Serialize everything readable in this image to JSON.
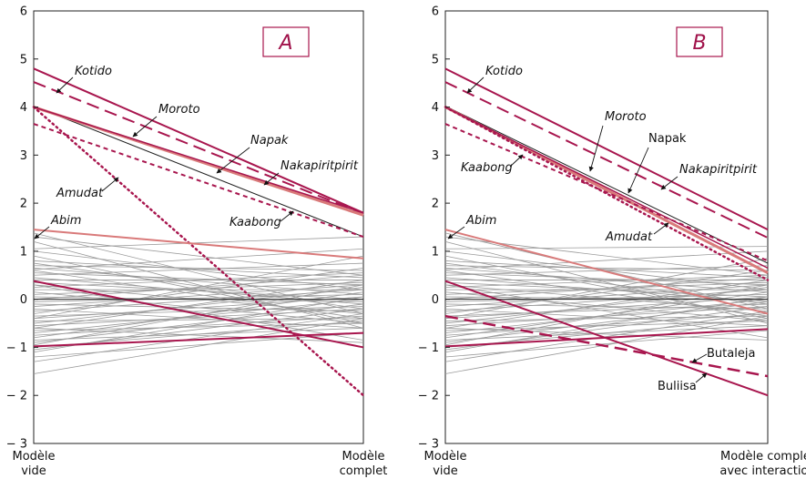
{
  "colors": {
    "crimson": "#a8164e",
    "salmon": "#d97a7a",
    "grey": "#9a9a9a",
    "black": "#222222",
    "letter_box": "#a8164e"
  },
  "chart_data": [
    {
      "type": "line",
      "panel_label": "A",
      "categories": [
        "Modèle\nvide",
        "Modèle\ncomplet"
      ],
      "category_lines": [
        [
          "Modèle",
          "vide"
        ],
        [
          "Modèle",
          "complet"
        ]
      ],
      "ylim": [
        -3,
        6
      ],
      "yticks": [
        -3,
        -2,
        -1,
        0,
        1,
        2,
        3,
        4,
        5,
        6
      ],
      "ytick_labels": [
        "− 3",
        "− 2",
        "− 1",
        "0",
        "1",
        "2",
        "3",
        "4",
        "5",
        "6"
      ],
      "grid": false,
      "highlighted": [
        {
          "label": "Kotido",
          "start": 4.8,
          "end": 1.8,
          "color": "crimson",
          "dash": "solid",
          "width": 2
        },
        {
          "label": "",
          "start": 4.52,
          "end": 1.78,
          "color": "crimson",
          "dash": "long",
          "width": 2
        },
        {
          "label": "Moroto",
          "start": 4.02,
          "end": 1.3,
          "color": "black",
          "dash": "solid",
          "width": 1
        },
        {
          "label": "Napak",
          "start": 4.0,
          "end": 1.75,
          "color": "salmon",
          "dash": "solid",
          "width": 3
        },
        {
          "label": "Nakapiritpirit",
          "start": 4.0,
          "end": 1.8,
          "color": "crimson",
          "dash": "solid",
          "width": 1.5
        },
        {
          "label": "Kaabong",
          "start": 3.65,
          "end": 1.3,
          "color": "crimson",
          "dash": "short",
          "width": 2
        },
        {
          "label": "Amudat",
          "start": 4.0,
          "end": -2.0,
          "color": "crimson",
          "dash": "dot",
          "width": 2.5
        },
        {
          "label": "Abim",
          "start": 1.45,
          "end": 0.85,
          "color": "salmon",
          "dash": "solid",
          "width": 2
        },
        {
          "label": "",
          "start": 0.38,
          "end": -1.0,
          "color": "crimson",
          "dash": "solid",
          "width": 2
        },
        {
          "label": "",
          "start": -0.98,
          "end": -0.7,
          "color": "crimson",
          "dash": "solid",
          "width": 2
        },
        {
          "label": "",
          "start": 0.0,
          "end": 0.0,
          "color": "black",
          "dash": "solid",
          "width": 1
        }
      ],
      "background": [
        [
          1.38,
          -0.3
        ],
        [
          1.3,
          0.5
        ],
        [
          1.2,
          -0.6
        ],
        [
          1.05,
          1.3
        ],
        [
          1.0,
          0.2
        ],
        [
          0.9,
          -0.5
        ],
        [
          0.8,
          0.45
        ],
        [
          0.75,
          -0.2
        ],
        [
          0.7,
          0.6
        ],
        [
          0.65,
          0.1
        ],
        [
          0.6,
          -0.4
        ],
        [
          0.55,
          0.3
        ],
        [
          0.5,
          0.75
        ],
        [
          0.45,
          -0.1
        ],
        [
          0.4,
          0.4
        ],
        [
          0.35,
          0.0
        ],
        [
          0.3,
          -0.3
        ],
        [
          0.25,
          0.55
        ],
        [
          0.2,
          0.2
        ],
        [
          0.15,
          -0.5
        ],
        [
          0.1,
          0.35
        ],
        [
          0.05,
          -0.05
        ],
        [
          0.0,
          0.5
        ],
        [
          -0.05,
          0.1
        ],
        [
          -0.1,
          -0.25
        ],
        [
          -0.15,
          0.3
        ],
        [
          -0.2,
          -0.6
        ],
        [
          -0.25,
          0.2
        ],
        [
          -0.3,
          0.65
        ],
        [
          -0.35,
          -0.15
        ],
        [
          -0.4,
          0.05
        ],
        [
          -0.45,
          -0.4
        ],
        [
          -0.5,
          0.25
        ],
        [
          -0.55,
          -0.2
        ],
        [
          -0.6,
          0.4
        ],
        [
          -0.65,
          -0.5
        ],
        [
          -0.7,
          0.0
        ],
        [
          -0.75,
          -0.35
        ],
        [
          -0.8,
          0.15
        ],
        [
          -0.85,
          -0.6
        ],
        [
          -0.9,
          -0.1
        ],
        [
          -0.95,
          0.3
        ],
        [
          -1.0,
          -0.45
        ],
        [
          -1.05,
          -0.2
        ],
        [
          -1.1,
          0.05
        ],
        [
          -1.2,
          -0.7
        ],
        [
          -1.3,
          -0.3
        ],
        [
          -1.55,
          -0.4
        ],
        [
          0.62,
          1.05
        ],
        [
          -0.4,
          0.9
        ],
        [
          0.3,
          -0.85
        ],
        [
          -0.6,
          -0.9
        ]
      ]
    },
    {
      "type": "line",
      "panel_label": "B",
      "categories": [
        "Modèle\nvide",
        "Modèle complet\navec interaction"
      ],
      "category_lines": [
        [
          "Modèle",
          "vide"
        ],
        [
          "Modèle complet",
          "avec interaction"
        ]
      ],
      "ylim": [
        -3,
        6
      ],
      "yticks": [
        -3,
        -2,
        -1,
        0,
        1,
        2,
        3,
        4,
        5,
        6
      ],
      "ytick_labels": [
        "− 3",
        "− 2",
        "− 1",
        "0",
        "1",
        "2",
        "3",
        "4",
        "5",
        "6"
      ],
      "grid": false,
      "highlighted": [
        {
          "label": "Kotido",
          "start": 4.8,
          "end": 1.45,
          "color": "crimson",
          "dash": "solid",
          "width": 2
        },
        {
          "label": "Nakapiritpirit",
          "start": 4.52,
          "end": 1.28,
          "color": "crimson",
          "dash": "long",
          "width": 2
        },
        {
          "label": "Moroto",
          "start": 4.02,
          "end": 0.75,
          "color": "black",
          "dash": "solid",
          "width": 1
        },
        {
          "label": "Napak",
          "start": 4.0,
          "end": 0.55,
          "color": "salmon",
          "dash": "solid",
          "width": 3
        },
        {
          "label": "",
          "start": 4.0,
          "end": 0.65,
          "color": "crimson",
          "dash": "solid",
          "width": 1.5
        },
        {
          "label": "Amudat",
          "start": 4.0,
          "end": 0.4,
          "color": "crimson",
          "dash": "dot",
          "width": 2.5
        },
        {
          "label": "Kaabong",
          "start": 3.65,
          "end": 0.8,
          "color": "crimson",
          "dash": "short",
          "width": 2
        },
        {
          "label": "Abim",
          "start": 1.45,
          "end": -0.3,
          "color": "salmon",
          "dash": "solid",
          "width": 2
        },
        {
          "label": "Buliisa",
          "start": 0.38,
          "end": -2.0,
          "color": "crimson",
          "dash": "solid",
          "width": 2
        },
        {
          "label": "Butaleja",
          "start": -0.35,
          "end": -1.6,
          "color": "crimson",
          "dash": "long",
          "width": 2.5
        },
        {
          "label": "",
          "start": -0.98,
          "end": -0.62,
          "color": "crimson",
          "dash": "solid",
          "width": 2
        },
        {
          "label": "",
          "start": 0.0,
          "end": 0.0,
          "color": "black",
          "dash": "solid",
          "width": 1
        }
      ],
      "background": [
        [
          1.38,
          -0.2
        ],
        [
          1.3,
          0.5
        ],
        [
          1.2,
          -0.5
        ],
        [
          1.05,
          1.1
        ],
        [
          1.0,
          0.2
        ],
        [
          0.9,
          -0.4
        ],
        [
          0.8,
          0.45
        ],
        [
          0.75,
          -0.1
        ],
        [
          0.7,
          0.6
        ],
        [
          0.65,
          0.15
        ],
        [
          0.6,
          -0.35
        ],
        [
          0.55,
          0.3
        ],
        [
          0.5,
          0.7
        ],
        [
          0.45,
          -0.05
        ],
        [
          0.4,
          0.4
        ],
        [
          0.35,
          0.05
        ],
        [
          0.3,
          -0.25
        ],
        [
          0.25,
          0.5
        ],
        [
          0.2,
          0.2
        ],
        [
          0.15,
          -0.45
        ],
        [
          0.1,
          0.35
        ],
        [
          0.05,
          0.0
        ],
        [
          0.0,
          0.45
        ],
        [
          -0.05,
          0.1
        ],
        [
          -0.1,
          -0.2
        ],
        [
          -0.15,
          0.3
        ],
        [
          -0.2,
          -0.55
        ],
        [
          -0.25,
          0.2
        ],
        [
          -0.3,
          0.6
        ],
        [
          -0.35,
          -0.1
        ],
        [
          -0.4,
          0.05
        ],
        [
          -0.45,
          -0.35
        ],
        [
          -0.5,
          0.25
        ],
        [
          -0.55,
          -0.15
        ],
        [
          -0.6,
          0.4
        ],
        [
          -0.65,
          -0.45
        ],
        [
          -0.7,
          0.0
        ],
        [
          -0.75,
          -0.3
        ],
        [
          -0.8,
          0.15
        ],
        [
          -0.85,
          -0.55
        ],
        [
          -0.9,
          -0.05
        ],
        [
          -0.95,
          0.3
        ],
        [
          -1.0,
          -0.4
        ],
        [
          -1.05,
          -0.15
        ],
        [
          -1.1,
          0.05
        ],
        [
          -1.2,
          -0.65
        ],
        [
          -1.3,
          -0.25
        ],
        [
          -1.55,
          -0.35
        ],
        [
          0.62,
          1.0
        ],
        [
          -0.4,
          0.85
        ],
        [
          0.3,
          -0.8
        ],
        [
          -0.6,
          -0.85
        ]
      ]
    }
  ],
  "annotations": [
    [
      {
        "text": "Kotido",
        "italic": true
      },
      {
        "text": "Moroto",
        "italic": true
      },
      {
        "text": "Napak",
        "italic": true
      },
      {
        "text": "Nakapiritpirit",
        "italic": true
      },
      {
        "text": "Amudat",
        "italic": true
      },
      {
        "text": "Kaabong",
        "italic": true
      },
      {
        "text": "Abim",
        "italic": true
      }
    ],
    [
      {
        "text": "Kotido",
        "italic": true
      },
      {
        "text": "Moroto",
        "italic": true
      },
      {
        "text": "Napak",
        "italic": false
      },
      {
        "text": "Kaabong",
        "italic": true
      },
      {
        "text": "Nakapiritpirit",
        "italic": true
      },
      {
        "text": "Amudat",
        "italic": true
      },
      {
        "text": "Abim",
        "italic": true
      },
      {
        "text": "Butaleja",
        "italic": false
      },
      {
        "text": "Buliisa",
        "italic": false
      }
    ]
  ]
}
